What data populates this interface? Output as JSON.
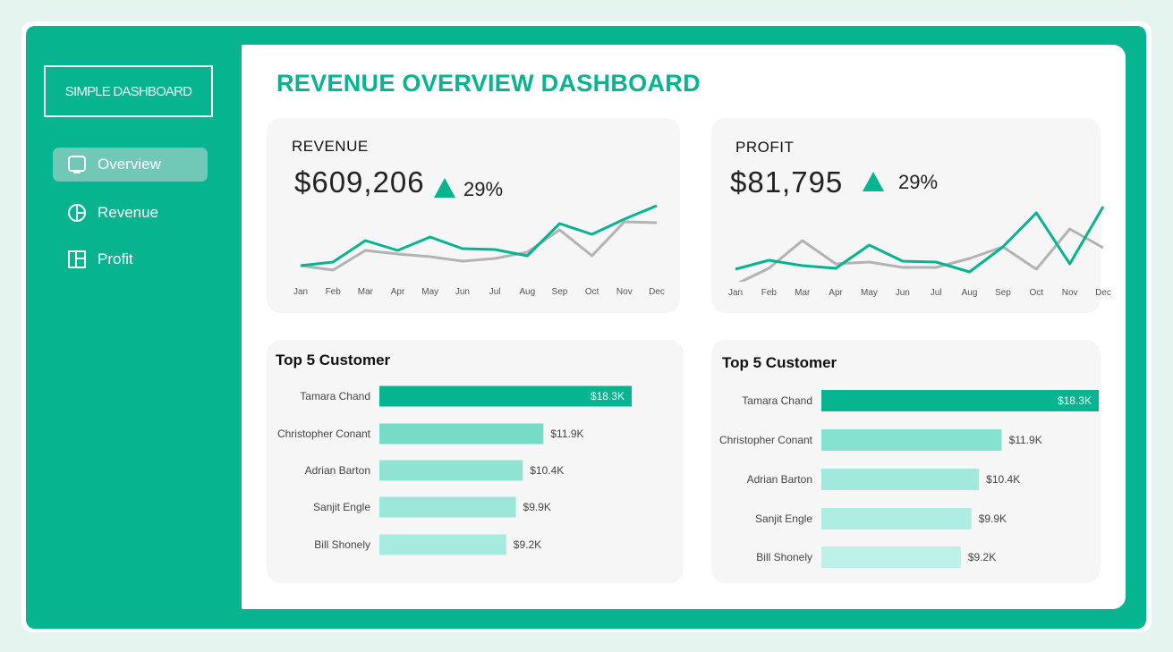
{
  "sidebar": {
    "logo": "SIMPLE DASHBOARD",
    "items": [
      {
        "label": "Overview",
        "icon": "monitor-icon",
        "active": true
      },
      {
        "label": "Revenue",
        "icon": "pie-chart-icon",
        "active": false
      },
      {
        "label": "Profit",
        "icon": "layout-icon",
        "active": false
      }
    ]
  },
  "header": {
    "title": "REVENUE OVERVIEW DASHBOARD"
  },
  "colors": {
    "accent": "#06b48f",
    "comparison": "#b3b3b3"
  },
  "kpis": [
    {
      "label": "REVENUE",
      "value": "$609,206",
      "change": "29%",
      "trend": "up"
    },
    {
      "label": "PROFIT",
      "value": "$81,795",
      "change": "29%",
      "trend": "up"
    }
  ],
  "chart_data": [
    {
      "type": "line",
      "title": "",
      "categories": [
        "Jan",
        "Feb",
        "Mar",
        "Apr",
        "May",
        "Jun",
        "Jul",
        "Aug",
        "Sep",
        "Oct",
        "Nov",
        "Dec"
      ],
      "series": [
        {
          "values": [
            13,
            17,
            41,
            30,
            45,
            32,
            31,
            24,
            60,
            48,
            65,
            80
          ],
          "color": "#06b48f"
        },
        {
          "values": [
            13,
            8,
            30,
            26,
            23,
            18,
            21,
            28,
            53,
            24,
            62,
            61
          ],
          "color": "#b3b3b3"
        }
      ]
    },
    {
      "type": "line",
      "title": "",
      "categories": [
        "Jan",
        "Feb",
        "Mar",
        "Apr",
        "May",
        "Jun",
        "Jul",
        "Aug",
        "Sep",
        "Oct",
        "Nov",
        "Dec"
      ],
      "series": [
        {
          "values": [
            19,
            29,
            23,
            20,
            46,
            28,
            27,
            16,
            44,
            82,
            25,
            89
          ],
          "color": "#06b48f"
        },
        {
          "values": [
            2,
            20,
            51,
            25,
            27,
            21,
            21,
            31,
            44,
            19,
            64,
            43
          ],
          "color": "#b3b3b3"
        }
      ]
    },
    {
      "type": "bar",
      "title": "Top 5 Customer",
      "categories": [
        "Tamara Chand",
        "Christopher Conant",
        "Adrian Barton",
        "Sanjit Engle",
        "Bill Shonely"
      ],
      "values": [
        18.3,
        11.9,
        10.4,
        9.9,
        9.2
      ],
      "labels": [
        "$18.3K",
        "$11.9K",
        "$10.4K",
        "$9.9K",
        "$9.2K"
      ],
      "colors": [
        "#06b48f",
        "#77dbc8",
        "#8fe3d3",
        "#9be8da",
        "#a6ebde"
      ]
    },
    {
      "type": "bar",
      "title": "Top 5 Customer",
      "categories": [
        "Tamara Chand",
        "Christopher Conant",
        "Adrian Barton",
        "Sanjit Engle",
        "Bill Shonely"
      ],
      "values": [
        18.3,
        11.9,
        10.4,
        9.9,
        9.2
      ],
      "labels": [
        "$18.3K",
        "$11.9K",
        "$10.4K",
        "$9.9K",
        "$9.2K"
      ],
      "colors": [
        "#06b48f",
        "#86e2d0",
        "#a0e9dc",
        "#aeeee2",
        "#bdf1e8"
      ]
    }
  ]
}
